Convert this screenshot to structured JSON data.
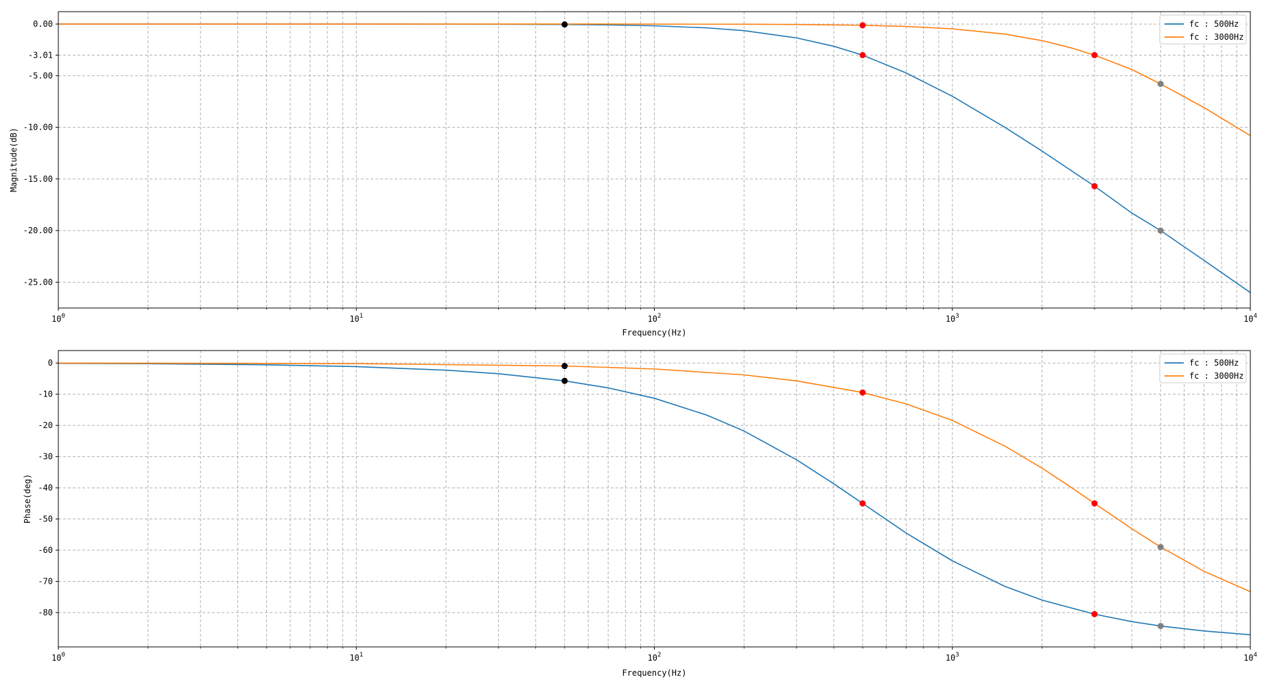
{
  "chart_data": [
    {
      "type": "line",
      "xscale": "log",
      "xlabel": "Frequency(Hz)",
      "ylabel": "Magnitude(dB)",
      "xlim": [
        1,
        10000
      ],
      "ylim": [
        -27.5,
        1.2
      ],
      "grid": true,
      "legend_position": "top-right",
      "x_ticks": [
        {
          "value": 1,
          "base": "10",
          "exp": "0"
        },
        {
          "value": 10,
          "base": "10",
          "exp": "1"
        },
        {
          "value": 100,
          "base": "10",
          "exp": "2"
        },
        {
          "value": 1000,
          "base": "10",
          "exp": "3"
        },
        {
          "value": 10000,
          "base": "10",
          "exp": "4"
        }
      ],
      "y_ticks": [
        {
          "value": 0,
          "label": "0.00"
        },
        {
          "value": -3.01,
          "label": "-3.01"
        },
        {
          "value": -5,
          "label": "-5.00"
        },
        {
          "value": -10,
          "label": "-10.00"
        },
        {
          "value": -15,
          "label": "-15.00"
        },
        {
          "value": -20,
          "label": "-20.00"
        },
        {
          "value": -25,
          "label": "-25.00"
        }
      ],
      "series": [
        {
          "name": "fc : 500Hz",
          "color": "#1f77b4",
          "x": [
            1,
            2,
            5,
            10,
            20,
            30,
            50,
            70,
            100,
            150,
            200,
            300,
            400,
            500,
            700,
            1000,
            1500,
            2000,
            3000,
            4000,
            5000,
            7000,
            10000
          ],
          "y": [
            0,
            -0.0001,
            -0.0004,
            -0.0017,
            -0.007,
            -0.016,
            -0.043,
            -0.084,
            -0.17,
            -0.37,
            -0.64,
            -1.34,
            -2.15,
            -3.01,
            -4.74,
            -6.99,
            -10.0,
            -12.3,
            -15.7,
            -18.3,
            -20.0,
            -22.9,
            -26.0
          ]
        },
        {
          "name": "fc : 3000Hz",
          "color": "#ff7f0e",
          "x": [
            1,
            10,
            50,
            100,
            200,
            300,
            500,
            700,
            1000,
            1500,
            2000,
            2500,
            3000,
            4000,
            5000,
            7000,
            10000
          ],
          "y": [
            0,
            0,
            -0.0012,
            -0.005,
            -0.019,
            -0.043,
            -0.12,
            -0.23,
            -0.46,
            -0.97,
            -1.6,
            -2.3,
            -3.01,
            -4.4,
            -5.8,
            -8.1,
            -10.8
          ]
        }
      ],
      "markers": [
        {
          "x": 50,
          "y": -0.04,
          "color": "#000000"
        },
        {
          "x": 500,
          "y": -0.12,
          "color": "#ff0000"
        },
        {
          "x": 500,
          "y": -3.01,
          "color": "#ff0000"
        },
        {
          "x": 3000,
          "y": -3.01,
          "color": "#ff0000"
        },
        {
          "x": 3000,
          "y": -15.7,
          "color": "#ff0000"
        },
        {
          "x": 5000,
          "y": -5.8,
          "color": "#808080"
        },
        {
          "x": 5000,
          "y": -20.0,
          "color": "#808080"
        }
      ]
    },
    {
      "type": "line",
      "xscale": "log",
      "xlabel": "Frequency(Hz)",
      "ylabel": "Phase(deg)",
      "xlim": [
        1,
        10000
      ],
      "ylim": [
        -91,
        4
      ],
      "grid": true,
      "legend_position": "top-right",
      "x_ticks": [
        {
          "value": 1,
          "base": "10",
          "exp": "0"
        },
        {
          "value": 10,
          "base": "10",
          "exp": "1"
        },
        {
          "value": 100,
          "base": "10",
          "exp": "2"
        },
        {
          "value": 1000,
          "base": "10",
          "exp": "3"
        },
        {
          "value": 10000,
          "base": "10",
          "exp": "4"
        }
      ],
      "y_ticks": [
        {
          "value": 0,
          "label": "0"
        },
        {
          "value": -10,
          "label": "-10"
        },
        {
          "value": -20,
          "label": "-20"
        },
        {
          "value": -30,
          "label": "-30"
        },
        {
          "value": -40,
          "label": "-40"
        },
        {
          "value": -50,
          "label": "-50"
        },
        {
          "value": -60,
          "label": "-60"
        },
        {
          "value": -70,
          "label": "-70"
        },
        {
          "value": -80,
          "label": "-80"
        }
      ],
      "series": [
        {
          "name": "fc : 500Hz",
          "color": "#1f77b4",
          "x": [
            1,
            2,
            5,
            10,
            20,
            30,
            50,
            70,
            100,
            150,
            200,
            300,
            400,
            500,
            700,
            1000,
            1500,
            2000,
            3000,
            4000,
            5000,
            7000,
            10000
          ],
          "y": [
            -0.11,
            -0.23,
            -0.57,
            -1.15,
            -2.29,
            -3.43,
            -5.71,
            -7.97,
            -11.3,
            -16.7,
            -21.8,
            -31.0,
            -38.7,
            -45.0,
            -54.5,
            -63.4,
            -71.6,
            -76.0,
            -80.5,
            -82.9,
            -84.3,
            -85.9,
            -87.1
          ]
        },
        {
          "name": "fc : 3000Hz",
          "color": "#ff7f0e",
          "x": [
            1,
            10,
            50,
            100,
            200,
            300,
            500,
            700,
            1000,
            1500,
            2000,
            2500,
            3000,
            4000,
            5000,
            7000,
            10000
          ],
          "y": [
            -0.02,
            -0.19,
            -0.95,
            -1.91,
            -3.81,
            -5.71,
            -9.46,
            -13.1,
            -18.4,
            -26.6,
            -33.7,
            -39.8,
            -45.0,
            -53.1,
            -59.0,
            -66.8,
            -73.3
          ]
        }
      ],
      "markers": [
        {
          "x": 50,
          "y": -0.95,
          "color": "#000000"
        },
        {
          "x": 50,
          "y": -5.71,
          "color": "#000000"
        },
        {
          "x": 500,
          "y": -9.46,
          "color": "#ff0000"
        },
        {
          "x": 500,
          "y": -45.0,
          "color": "#ff0000"
        },
        {
          "x": 3000,
          "y": -45.0,
          "color": "#ff0000"
        },
        {
          "x": 3000,
          "y": -80.5,
          "color": "#ff0000"
        },
        {
          "x": 5000,
          "y": -59.0,
          "color": "#808080"
        },
        {
          "x": 5000,
          "y": -84.3,
          "color": "#808080"
        }
      ]
    }
  ]
}
